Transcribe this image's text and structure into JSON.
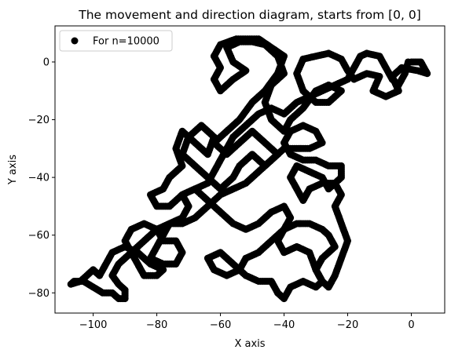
{
  "chart_data": {
    "type": "scatter",
    "title": "The movement and direction diagram, starts from [0, 0]",
    "xlabel": "X axis",
    "ylabel": "Y axis",
    "xlim": [
      -112,
      10.5
    ],
    "ylim": [
      -87,
      12.5
    ],
    "xticks": [
      -100,
      -80,
      -60,
      -40,
      -20,
      0
    ],
    "yticks": [
      -80,
      -60,
      -40,
      -20,
      0
    ],
    "grid": false,
    "legend_position": "top-left",
    "marker_color": "#000000",
    "series": [
      {
        "name": "For n=10000",
        "path_vertices": [
          [
            0,
            0
          ],
          [
            3,
            0
          ],
          [
            5,
            -4
          ],
          [
            2,
            -3
          ],
          [
            -3,
            -2
          ],
          [
            -6,
            -5
          ],
          [
            -4,
            -10
          ],
          [
            -8,
            -12
          ],
          [
            -12,
            -10
          ],
          [
            -10,
            -5
          ],
          [
            -14,
            -4
          ],
          [
            -18,
            -6
          ],
          [
            -20,
            -3
          ],
          [
            -22,
            1
          ],
          [
            -26,
            3
          ],
          [
            -30,
            2
          ],
          [
            -34,
            1
          ],
          [
            -36,
            -4
          ],
          [
            -34,
            -10
          ],
          [
            -30,
            -14
          ],
          [
            -26,
            -14
          ],
          [
            -22,
            -10
          ],
          [
            -26,
            -8
          ],
          [
            -30,
            -10
          ],
          [
            -34,
            -16
          ],
          [
            -38,
            -20
          ],
          [
            -40,
            -24
          ],
          [
            -44,
            -20
          ],
          [
            -46,
            -14
          ],
          [
            -44,
            -8
          ],
          [
            -40,
            -4
          ],
          [
            -42,
            2
          ],
          [
            -46,
            6
          ],
          [
            -50,
            7
          ],
          [
            -54,
            7
          ],
          [
            -58,
            5
          ],
          [
            -56,
            0
          ],
          [
            -52,
            -3
          ],
          [
            -56,
            -6
          ],
          [
            -60,
            -10
          ],
          [
            -62,
            -6
          ],
          [
            -60,
            -2
          ],
          [
            -62,
            2
          ],
          [
            -60,
            6
          ],
          [
            -55,
            8
          ],
          [
            -48,
            8
          ],
          [
            -44,
            5
          ],
          [
            -40,
            2
          ],
          [
            -42,
            -4
          ],
          [
            -46,
            -10
          ],
          [
            -50,
            -14
          ],
          [
            -54,
            -20
          ],
          [
            -58,
            -24
          ],
          [
            -62,
            -28
          ],
          [
            -58,
            -32
          ],
          [
            -54,
            -28
          ],
          [
            -50,
            -24
          ],
          [
            -46,
            -28
          ],
          [
            -42,
            -32
          ],
          [
            -46,
            -36
          ],
          [
            -50,
            -32
          ],
          [
            -54,
            -36
          ],
          [
            -56,
            -40
          ],
          [
            -60,
            -44
          ],
          [
            -64,
            -40
          ],
          [
            -68,
            -36
          ],
          [
            -72,
            -32
          ],
          [
            -70,
            -26
          ],
          [
            -66,
            -22
          ],
          [
            -62,
            -26
          ],
          [
            -64,
            -32
          ],
          [
            -68,
            -28
          ],
          [
            -72,
            -24
          ],
          [
            -74,
            -30
          ],
          [
            -72,
            -36
          ],
          [
            -76,
            -40
          ],
          [
            -78,
            -44
          ],
          [
            -82,
            -46
          ],
          [
            -80,
            -50
          ],
          [
            -76,
            -50
          ],
          [
            -72,
            -46
          ],
          [
            -68,
            -44
          ],
          [
            -64,
            -48
          ],
          [
            -60,
            -52
          ],
          [
            -56,
            -56
          ],
          [
            -52,
            -58
          ],
          [
            -48,
            -56
          ],
          [
            -44,
            -52
          ],
          [
            -40,
            -50
          ],
          [
            -38,
            -54
          ],
          [
            -40,
            -58
          ],
          [
            -44,
            -62
          ],
          [
            -48,
            -66
          ],
          [
            -52,
            -68
          ],
          [
            -54,
            -72
          ],
          [
            -58,
            -74
          ],
          [
            -62,
            -72
          ],
          [
            -64,
            -68
          ],
          [
            -60,
            -66
          ],
          [
            -56,
            -70
          ],
          [
            -52,
            -74
          ],
          [
            -48,
            -76
          ],
          [
            -44,
            -76
          ],
          [
            -42,
            -80
          ],
          [
            -40,
            -82
          ],
          [
            -38,
            -78
          ],
          [
            -34,
            -76
          ],
          [
            -30,
            -78
          ],
          [
            -28,
            -76
          ],
          [
            -30,
            -72
          ],
          [
            -32,
            -66
          ],
          [
            -36,
            -64
          ],
          [
            -40,
            -66
          ],
          [
            -42,
            -62
          ],
          [
            -40,
            -58
          ],
          [
            -36,
            -56
          ],
          [
            -32,
            -56
          ],
          [
            -28,
            -58
          ],
          [
            -26,
            -60
          ],
          [
            -24,
            -64
          ],
          [
            -28,
            -68
          ],
          [
            -30,
            -72
          ],
          [
            -28,
            -76
          ],
          [
            -26,
            -78
          ],
          [
            -24,
            -74
          ],
          [
            -22,
            -68
          ],
          [
            -20,
            -62
          ],
          [
            -22,
            -56
          ],
          [
            -24,
            -50
          ],
          [
            -22,
            -46
          ],
          [
            -24,
            -42
          ],
          [
            -28,
            -42
          ],
          [
            -32,
            -44
          ],
          [
            -34,
            -48
          ],
          [
            -36,
            -44
          ],
          [
            -38,
            -40
          ],
          [
            -36,
            -36
          ],
          [
            -32,
            -38
          ],
          [
            -28,
            -40
          ],
          [
            -26,
            -44
          ],
          [
            -22,
            -40
          ],
          [
            -22,
            -36
          ],
          [
            -26,
            -36
          ],
          [
            -30,
            -34
          ],
          [
            -34,
            -34
          ],
          [
            -38,
            -32
          ],
          [
            -40,
            -28
          ],
          [
            -38,
            -24
          ],
          [
            -34,
            -22
          ],
          [
            -30,
            -24
          ],
          [
            -28,
            -28
          ],
          [
            -32,
            -30
          ],
          [
            -36,
            -30
          ],
          [
            -40,
            -30
          ],
          [
            -44,
            -34
          ],
          [
            -48,
            -38
          ],
          [
            -52,
            -42
          ],
          [
            -56,
            -44
          ],
          [
            -60,
            -46
          ],
          [
            -64,
            -50
          ],
          [
            -68,
            -54
          ],
          [
            -72,
            -56
          ],
          [
            -76,
            -56
          ],
          [
            -78,
            -60
          ],
          [
            -80,
            -64
          ],
          [
            -82,
            -68
          ],
          [
            -78,
            -70
          ],
          [
            -74,
            -70
          ],
          [
            -72,
            -66
          ],
          [
            -74,
            -62
          ],
          [
            -78,
            -62
          ],
          [
            -80,
            -58
          ],
          [
            -84,
            -56
          ],
          [
            -88,
            -58
          ],
          [
            -90,
            -62
          ],
          [
            -88,
            -66
          ],
          [
            -86,
            -70
          ],
          [
            -84,
            -74
          ],
          [
            -80,
            -74
          ],
          [
            -78,
            -72
          ],
          [
            -82,
            -70
          ],
          [
            -86,
            -66
          ],
          [
            -90,
            -64
          ],
          [
            -94,
            -66
          ],
          [
            -96,
            -70
          ],
          [
            -98,
            -74
          ],
          [
            -100,
            -72
          ],
          [
            -102,
            -74
          ],
          [
            -104,
            -76
          ],
          [
            -107,
            -77
          ],
          [
            -106,
            -76
          ],
          [
            -103,
            -76
          ],
          [
            -100,
            -78
          ],
          [
            -97,
            -80
          ],
          [
            -94,
            -80
          ],
          [
            -92,
            -82
          ],
          [
            -90,
            -82
          ],
          [
            -90,
            -79
          ],
          [
            -92,
            -77
          ],
          [
            -94,
            -74
          ],
          [
            -92,
            -70
          ],
          [
            -90,
            -68
          ],
          [
            -88,
            -66
          ],
          [
            -86,
            -64
          ],
          [
            -84,
            -62
          ],
          [
            -82,
            -60
          ],
          [
            -80,
            -58
          ],
          [
            -76,
            -56
          ],
          [
            -72,
            -54
          ],
          [
            -70,
            -50
          ],
          [
            -72,
            -46
          ],
          [
            -68,
            -44
          ],
          [
            -64,
            -42
          ],
          [
            -62,
            -38
          ],
          [
            -60,
            -34
          ],
          [
            -58,
            -30
          ],
          [
            -56,
            -26
          ],
          [
            -52,
            -22
          ],
          [
            -48,
            -18
          ],
          [
            -44,
            -16
          ],
          [
            -40,
            -18
          ],
          [
            -36,
            -14
          ],
          [
            -32,
            -12
          ],
          [
            -28,
            -10
          ],
          [
            -24,
            -8
          ],
          [
            -20,
            -6
          ],
          [
            -18,
            -2
          ],
          [
            -16,
            2
          ],
          [
            -14,
            3
          ],
          [
            -10,
            2
          ],
          [
            -8,
            -2
          ],
          [
            -6,
            -6
          ],
          [
            -4,
            -8
          ],
          [
            -2,
            -4
          ],
          [
            -1,
            0
          ]
        ]
      }
    ]
  }
}
